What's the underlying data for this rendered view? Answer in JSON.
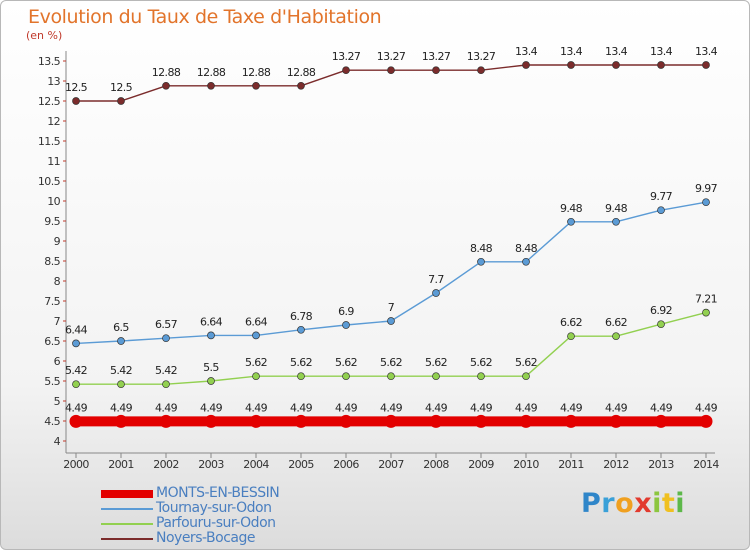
{
  "title": "Evolution du Taux de Taxe d'Habitation",
  "unit": "(en %)",
  "chart_data": {
    "type": "line",
    "title": "Evolution du Taux de Taxe d'Habitation",
    "ylabel": "(en %)",
    "x": [
      2000,
      2001,
      2002,
      2003,
      2004,
      2005,
      2006,
      2007,
      2008,
      2009,
      2010,
      2011,
      2012,
      2013,
      2014
    ],
    "ylim": [
      4,
      13.5
    ],
    "yticks": [
      4,
      4.5,
      5,
      5.5,
      6,
      6.5,
      7,
      7.5,
      8,
      8.5,
      9,
      9.5,
      10,
      10.5,
      11,
      11.5,
      12,
      12.5,
      13,
      13.5
    ],
    "grid": false,
    "legend_position": "bottom-left",
    "series": [
      {
        "name": "MONTS-EN-BESSIN",
        "color": "#e30000",
        "line_width": "thick",
        "values": [
          4.49,
          4.49,
          4.49,
          4.49,
          4.49,
          4.49,
          4.49,
          4.49,
          4.49,
          4.49,
          4.49,
          4.49,
          4.49,
          4.49,
          4.49
        ],
        "labels": [
          "4.49",
          "4.49",
          "4.49",
          "4.49",
          "4.49",
          "4.49",
          "4.49",
          "4.49",
          "4.49",
          "4.49",
          "4.49",
          "4.49",
          "4.49",
          "4.49",
          "4.49"
        ]
      },
      {
        "name": "Tournay-sur-Odon",
        "color": "#5b9bd5",
        "line_width": "thin",
        "values": [
          6.44,
          6.5,
          6.57,
          6.64,
          6.64,
          6.78,
          6.9,
          7,
          7.7,
          8.48,
          8.48,
          9.48,
          9.48,
          9.77,
          9.97
        ],
        "labels": [
          "6.44",
          "6.5",
          "6.57",
          "6.64",
          "6.64",
          "6.78",
          "6.9",
          "7",
          "7.7",
          "8.48",
          "8.48",
          "9.48",
          "9.48",
          "9.77",
          "9.97"
        ]
      },
      {
        "name": "Parfouru-sur-Odon",
        "color": "#92d050",
        "line_width": "thin",
        "values": [
          5.42,
          5.42,
          5.42,
          5.5,
          5.62,
          5.62,
          5.62,
          5.62,
          5.62,
          5.62,
          5.62,
          6.62,
          6.62,
          6.92,
          7.21
        ],
        "labels": [
          "5.42",
          "5.42",
          "5.42",
          "5.5",
          "5.62",
          "5.62",
          "5.62",
          "5.62",
          "5.62",
          "5.62",
          "5.62",
          "6.62",
          "6.62",
          "6.92",
          "7.21"
        ]
      },
      {
        "name": "Noyers-Bocage",
        "color": "#7b2c2c",
        "line_width": "thin",
        "values": [
          12.5,
          12.5,
          12.88,
          12.88,
          12.88,
          12.88,
          13.27,
          13.27,
          13.27,
          13.27,
          13.4,
          13.4,
          13.4,
          13.4,
          13.4
        ],
        "labels": [
          "12.5",
          "12.5",
          "12.88",
          "12.88",
          "12.88",
          "12.88",
          "13.27",
          "13.27",
          "13.27",
          "13.27",
          "13.4",
          "13.4",
          "13.4",
          "13.4",
          "13.4"
        ]
      }
    ]
  },
  "legend": [
    {
      "label": "MONTS-EN-BESSIN",
      "color": "#e30000"
    },
    {
      "label": "Tournay-sur-Odon",
      "color": "#5b9bd5"
    },
    {
      "label": "Parfouru-sur-Odon",
      "color": "#92d050"
    },
    {
      "label": "Noyers-Bocage",
      "color": "#7b2c2c"
    }
  ],
  "logo": {
    "letters": [
      "P",
      "r",
      "o",
      "x",
      "i",
      "t",
      "i"
    ]
  }
}
